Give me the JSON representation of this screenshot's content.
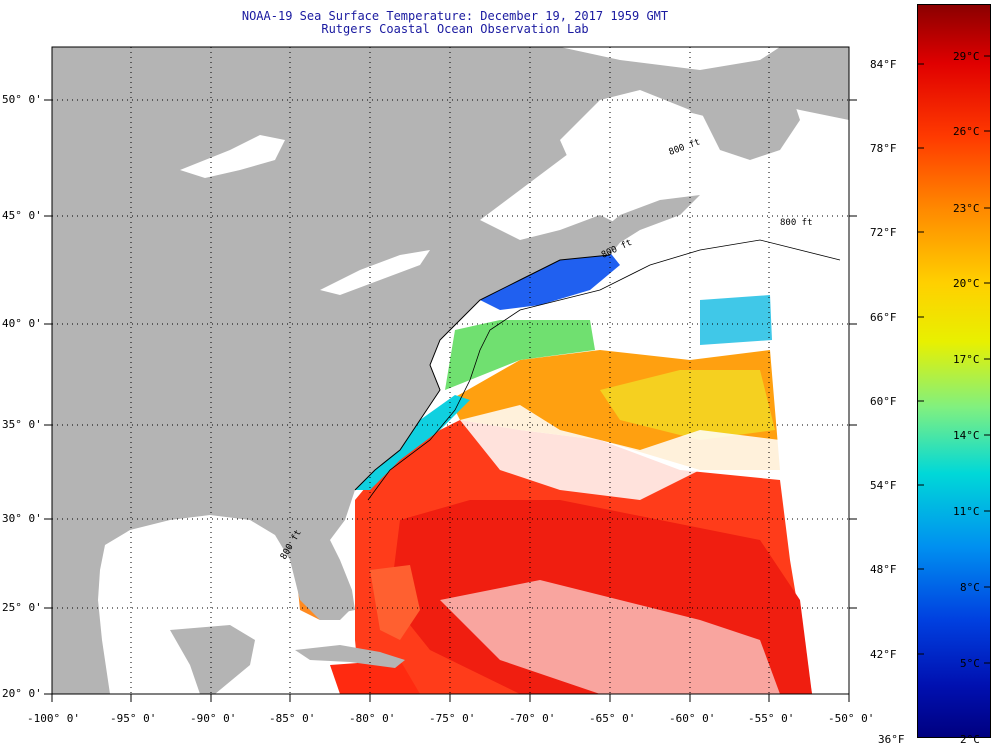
{
  "header": {
    "title": "NOAA-19 Sea Surface Temperature:  December 19, 2017 1959 GMT",
    "subtitle": "Rutgers Coastal Ocean Observation Lab"
  },
  "map": {
    "lon_labels": [
      "-100° 0'",
      "-95° 0'",
      "-90° 0'",
      "-85° 0'",
      "-80° 0'",
      "-75° 0'",
      "-70° 0'",
      "-65° 0'",
      "-60° 0'",
      "-55° 0'",
      "-50° 0'"
    ],
    "lat_labels": [
      "50° 0'",
      "45° 0'",
      "40° 0'",
      "35° 0'",
      "30° 0'",
      "25° 0'",
      "20° 0'"
    ],
    "depth_contours": [
      "800 ft",
      "800 ft",
      "800 ft",
      "800 ft"
    ],
    "colors": {
      "land": "#b4b4b4",
      "cloud": "#ffffff",
      "coast": "#000000"
    }
  },
  "colorbar": {
    "fahrenheit": [
      "84°F",
      "78°F",
      "72°F",
      "66°F",
      "60°F",
      "54°F",
      "48°F",
      "42°F",
      "36°F"
    ],
    "celsius": [
      "29°C",
      "26°C",
      "23°C",
      "20°C",
      "17°C",
      "14°C",
      "11°C",
      "8°C",
      "5°C",
      "2°C"
    ],
    "gradient": [
      "#8b0000",
      "#e00000",
      "#ff3a00",
      "#ff8a00",
      "#ffd000",
      "#e8f000",
      "#80f080",
      "#00d8d8",
      "#0090f0",
      "#0040e0",
      "#0010b0",
      "#000080"
    ]
  }
}
